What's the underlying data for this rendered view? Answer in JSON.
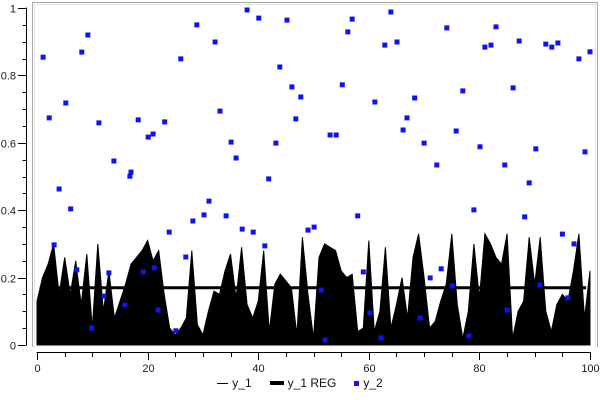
{
  "colors": {
    "background": "#ffffff",
    "axis": "#000000",
    "tick_label": "#1a1a1a",
    "area_fill": "#000000",
    "reg_line": "#000000",
    "marker_blue": "#1212ef",
    "plot_border_dark": "#aaaaaa",
    "plot_border_light": "#e4e4e4"
  },
  "chart_data": {
    "type": "area",
    "title": "",
    "xlabel": "",
    "ylabel": "",
    "xlim": [
      0,
      100
    ],
    "ylim": [
      0,
      1
    ],
    "grid": false,
    "x_ticks": {
      "values": [
        0,
        20,
        40,
        60,
        80,
        100
      ],
      "labels": [
        "0",
        "20",
        "40",
        "60",
        "80",
        "100"
      ],
      "minor_step": 5
    },
    "y_ticks": {
      "values": [
        0,
        0.2,
        0.4,
        0.6,
        0.8,
        1
      ],
      "labels": [
        "0",
        "0.2",
        "0.4",
        "0.6",
        "0.8",
        "1"
      ],
      "minor_step": 0.05
    },
    "series": [
      {
        "name": "y_1",
        "type": "area",
        "color": "#000000",
        "x_start": 0,
        "x_step": 1,
        "values": [
          0.13,
          0.2,
          0.24,
          0.3,
          0.15,
          0.26,
          0.15,
          0.25,
          0.12,
          0.27,
          0.05,
          0.3,
          0.1,
          0.22,
          0.08,
          0.13,
          0.18,
          0.24,
          0.26,
          0.28,
          0.31,
          0.25,
          0.28,
          0.15,
          0.05,
          0.03,
          0.05,
          0.08,
          0.28,
          0.06,
          0.03,
          0.1,
          0.16,
          0.15,
          0.22,
          0.27,
          0.14,
          0.29,
          0.12,
          0.08,
          0.13,
          0.28,
          0.04,
          0.18,
          0.21,
          0.19,
          0.17,
          0.03,
          0.32,
          0.15,
          0.02,
          0.26,
          0.3,
          0.29,
          0.28,
          0.22,
          0.2,
          0.21,
          0.04,
          0.05,
          0.31,
          0.04,
          0.1,
          0.29,
          0.05,
          0.12,
          0.2,
          0.08,
          0.26,
          0.33,
          0.2,
          0.05,
          0.07,
          0.13,
          0.18,
          0.33,
          0.12,
          0.02,
          0.1,
          0.3,
          0.14,
          0.33,
          0.3,
          0.26,
          0.24,
          0.33,
          0.02,
          0.1,
          0.13,
          0.32,
          0.18,
          0.32,
          0.1,
          0.04,
          0.12,
          0.15,
          0.13,
          0.22,
          0.33,
          0.08,
          0.22
        ]
      },
      {
        "name": "y_1 REG",
        "type": "hline",
        "color": "#000000",
        "value": 0.17,
        "x_from": 0.5,
        "x_to": 99.3,
        "stroke_width": 3
      },
      {
        "name": "y_2",
        "type": "scatter",
        "marker": "square",
        "marker_size": 5,
        "color": "#1212ef",
        "points": [
          [
            1.1,
            0.854
          ],
          [
            2.2,
            0.674
          ],
          [
            3.1,
            0.297
          ],
          [
            4,
            0.463
          ],
          [
            5.2,
            0.718
          ],
          [
            6.1,
            0.404
          ],
          [
            7.2,
            0.223
          ],
          [
            8.1,
            0.869
          ],
          [
            9.2,
            0.92
          ],
          [
            9.9,
            0.05
          ],
          [
            11.2,
            0.659
          ],
          [
            12.1,
            0.145
          ],
          [
            13,
            0.214
          ],
          [
            13.9,
            0.546
          ],
          [
            15.9,
            0.119
          ],
          [
            16.8,
            0.501
          ],
          [
            17,
            0.513
          ],
          [
            18.3,
            0.668
          ],
          [
            19.2,
            0.217
          ],
          [
            20.1,
            0.617
          ],
          [
            21,
            0.626
          ],
          [
            21.2,
            0.229
          ],
          [
            21.9,
            0.104
          ],
          [
            23.1,
            0.662
          ],
          [
            23.9,
            0.335
          ],
          [
            25.1,
            0.042
          ],
          [
            26,
            0.849
          ],
          [
            26.9,
            0.261
          ],
          [
            28.2,
            0.368
          ],
          [
            28.9,
            0.95
          ],
          [
            30.2,
            0.386
          ],
          [
            31.1,
            0.427
          ],
          [
            32.2,
            0.899
          ],
          [
            33.1,
            0.694
          ],
          [
            34.2,
            0.383
          ],
          [
            35.1,
            0.602
          ],
          [
            36,
            0.555
          ],
          [
            37.1,
            0.344
          ],
          [
            38,
            0.994
          ],
          [
            39.1,
            0.335
          ],
          [
            40.1,
            0.97
          ],
          [
            41.2,
            0.294
          ],
          [
            41.9,
            0.493
          ],
          [
            43.2,
            0.599
          ],
          [
            43.9,
            0.825
          ],
          [
            45.2,
            0.964
          ],
          [
            46.1,
            0.766
          ],
          [
            46.8,
            0.671
          ],
          [
            47.7,
            0.736
          ],
          [
            49,
            0.341
          ],
          [
            50.1,
            0.35
          ],
          [
            51.4,
            0.163
          ],
          [
            52.1,
            0.015
          ],
          [
            53,
            0.623
          ],
          [
            54.1,
            0.623
          ],
          [
            55.2,
            0.772
          ],
          [
            56.2,
            0.929
          ],
          [
            57,
            0.967
          ],
          [
            58,
            0.383
          ],
          [
            59,
            0.217
          ],
          [
            60.2,
            0.095
          ],
          [
            61.1,
            0.721
          ],
          [
            62.2,
            0.021
          ],
          [
            62.9,
            0.89
          ],
          [
            64,
            0.988
          ],
          [
            65.1,
            0.899
          ],
          [
            66.2,
            0.638
          ],
          [
            66.9,
            0.674
          ],
          [
            68.3,
            0.733
          ],
          [
            69.3,
            0.08
          ],
          [
            70,
            0.599
          ],
          [
            71.1,
            0.199
          ],
          [
            72.3,
            0.534
          ],
          [
            73.1,
            0.226
          ],
          [
            74.1,
            0.941
          ],
          [
            75.1,
            0.175
          ],
          [
            75.8,
            0.635
          ],
          [
            77,
            0.754
          ],
          [
            78.1,
            0.027
          ],
          [
            79,
            0.401
          ],
          [
            80.1,
            0.588
          ],
          [
            81,
            0.884
          ],
          [
            82.1,
            0.89
          ],
          [
            83,
            0.944
          ],
          [
            84.6,
            0.534
          ],
          [
            85,
            0.104
          ],
          [
            86.1,
            0.763
          ],
          [
            87.2,
            0.902
          ],
          [
            88.2,
            0.38
          ],
          [
            89,
            0.481
          ],
          [
            90.2,
            0.582
          ],
          [
            90.9,
            0.178
          ],
          [
            92,
            0.893
          ],
          [
            93.1,
            0.884
          ],
          [
            94.2,
            0.896
          ],
          [
            95,
            0.329
          ],
          [
            96,
            0.14
          ],
          [
            97.1,
            0.3
          ],
          [
            98,
            0.849
          ],
          [
            99.1,
            0.573
          ],
          [
            100,
            0.87
          ]
        ]
      }
    ],
    "legend": {
      "position": "bottom-center",
      "entries": [
        {
          "label": "y_1",
          "swatch": "thin-line",
          "color": "#000000"
        },
        {
          "label": "y_1 REG",
          "swatch": "thick-line",
          "color": "#000000"
        },
        {
          "label": "y_2",
          "swatch": "square",
          "color": "#1212ef"
        }
      ]
    }
  }
}
